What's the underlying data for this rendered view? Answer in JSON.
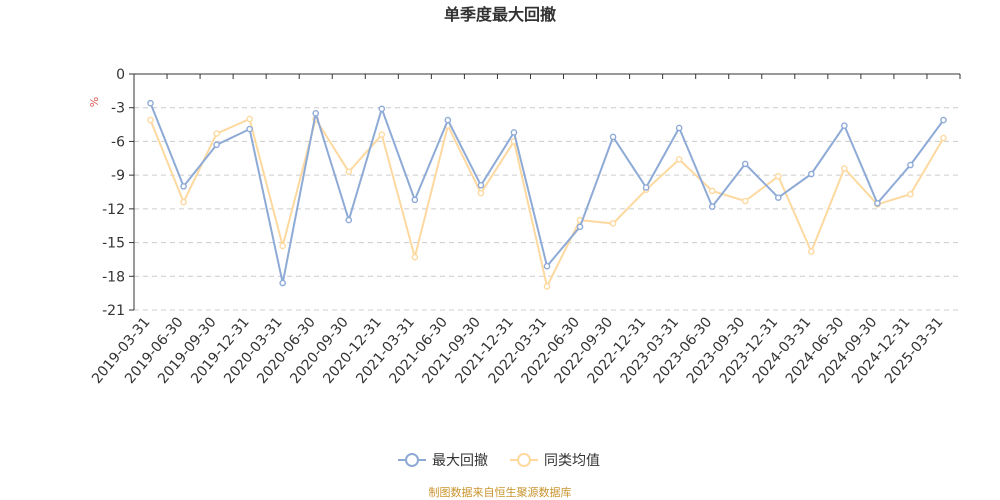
{
  "chart_data": {
    "type": "line",
    "title": "单季度最大回撤",
    "ylabel": "%",
    "ylim": [
      -21,
      0
    ],
    "yticks": [
      0,
      -3,
      -6,
      -9,
      -12,
      -15,
      -18,
      -21
    ],
    "grid": true,
    "legend_position": "bottom",
    "categories": [
      "2019-03-31",
      "2019-06-30",
      "2019-09-30",
      "2019-12-31",
      "2020-03-31",
      "2020-06-30",
      "2020-09-30",
      "2020-12-31",
      "2021-03-31",
      "2021-06-30",
      "2021-09-30",
      "2021-12-31",
      "2022-03-31",
      "2022-06-30",
      "2022-09-30",
      "2022-12-31",
      "2023-03-31",
      "2023-06-30",
      "2023-09-30",
      "2023-12-31",
      "2024-03-31",
      "2024-06-30",
      "2024-09-30",
      "2024-12-31",
      "2025-03-31"
    ],
    "series": [
      {
        "name": "最大回撤",
        "color": "#8eaad6",
        "values": [
          -2.6,
          -10.0,
          -6.3,
          -4.9,
          -18.6,
          -3.5,
          -13.0,
          -3.1,
          -11.2,
          -4.1,
          -9.9,
          -5.2,
          -17.1,
          -13.6,
          -5.6,
          -10.1,
          -4.8,
          -11.8,
          -8.0,
          -11.0,
          -8.9,
          -4.6,
          -11.5,
          -8.1,
          -4.1
        ]
      },
      {
        "name": "同类均值",
        "color": "#fdd9a0",
        "values": [
          -4.1,
          -11.4,
          -5.3,
          -4.0,
          -15.3,
          -4.0,
          -8.7,
          -5.4,
          -16.3,
          -4.6,
          -10.6,
          -6.0,
          -18.9,
          -13.0,
          -13.3,
          -10.3,
          -7.6,
          -10.4,
          -11.3,
          -9.1,
          -15.8,
          -8.4,
          -11.6,
          -10.7,
          -5.7
        ]
      }
    ]
  },
  "source_text": "制图数据来自恒生聚源数据库"
}
